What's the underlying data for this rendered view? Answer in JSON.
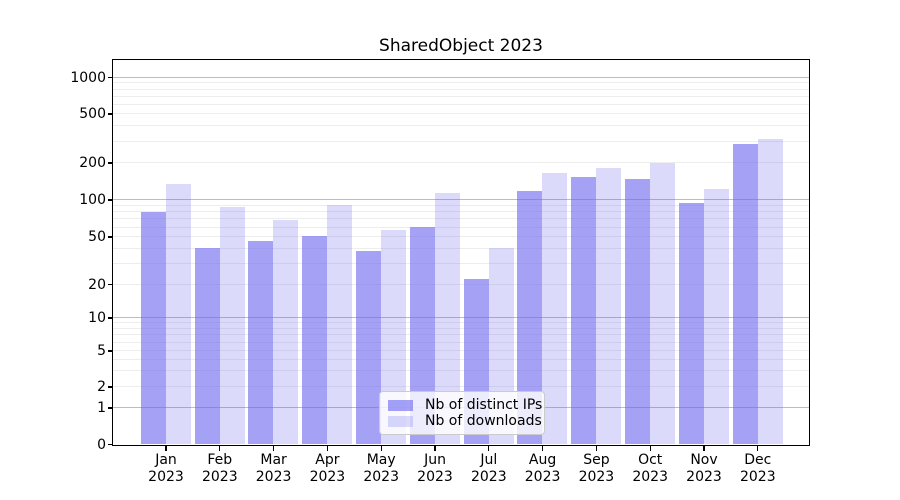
{
  "chart_data": {
    "type": "bar",
    "title": "SharedObject 2023",
    "yscale": "symlog",
    "ylim": [
      0,
      1400
    ],
    "yticks": [
      0,
      1,
      2,
      5,
      10,
      20,
      50,
      100,
      200,
      500,
      1000
    ],
    "grid": {
      "major_color": "#bdbdbd",
      "minor_color": "#ededed",
      "which": "both"
    },
    "legend_position": "lower center",
    "categories": [
      {
        "label": "Jan",
        "sub": "2023"
      },
      {
        "label": "Feb",
        "sub": "2023"
      },
      {
        "label": "Mar",
        "sub": "2023"
      },
      {
        "label": "Apr",
        "sub": "2023"
      },
      {
        "label": "May",
        "sub": "2023"
      },
      {
        "label": "Jun",
        "sub": "2023"
      },
      {
        "label": "Jul",
        "sub": "2023"
      },
      {
        "label": "Aug",
        "sub": "2023"
      },
      {
        "label": "Sep",
        "sub": "2023"
      },
      {
        "label": "Oct",
        "sub": "2023"
      },
      {
        "label": "Nov",
        "sub": "2023"
      },
      {
        "label": "Dec",
        "sub": "2023"
      }
    ],
    "series": [
      {
        "name": "Nb of distinct IPs",
        "key": "distinct-ips",
        "color": "rgba(105,100,240,0.60)",
        "values": [
          79,
          40,
          46,
          51,
          38,
          60,
          22,
          118,
          152,
          148,
          95,
          284
        ]
      },
      {
        "name": "Nb of downloads",
        "key": "downloads",
        "color": "rgba(105,100,240,0.24)",
        "values": [
          134,
          88,
          69,
          90,
          57,
          113,
          40,
          164,
          183,
          200,
          122,
          315
        ]
      }
    ]
  },
  "colors": {
    "background": "#ffffff",
    "axis": "#000000",
    "major_grid": "#bdbdbd",
    "minor_grid": "#ededed"
  }
}
